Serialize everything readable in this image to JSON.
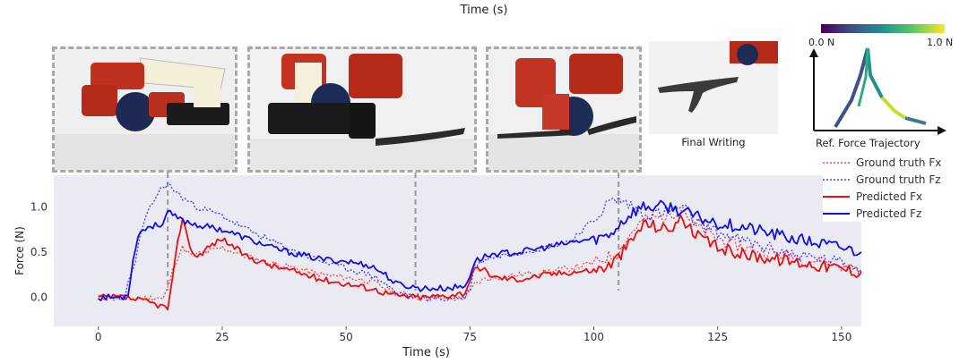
{
  "top_title": "Time (s)",
  "photos": {
    "caption_final": "Final Writing"
  },
  "inset": {
    "colorbar_min": "0.0 N",
    "colorbar_max": "1.0 N",
    "title": "Ref. Force Trajectory"
  },
  "colors": {
    "ground_truth_fx": "#ff4444",
    "ground_truth_fz": "#3b3bff",
    "predicted_fx": "#e81010",
    "predicted_fz": "#1010e6",
    "plot_bg": "#eaeaf2"
  },
  "chart_data": {
    "type": "line",
    "xlabel": "Time (s)",
    "ylabel": "Force (N)",
    "xlim": [
      -9,
      154
    ],
    "ylim": [
      -0.32,
      1.35
    ],
    "xticks": [
      0,
      25,
      50,
      75,
      100,
      125,
      150
    ],
    "yticks": [
      0.0,
      0.5,
      1.0
    ],
    "ytick_labels": [
      "0.0",
      "0.5",
      "1.0"
    ],
    "grid": false,
    "legend_position": "right",
    "markers_x": [
      14,
      64,
      105
    ],
    "series": [
      {
        "name": "Ground truth Fx",
        "style": "dotted",
        "x": [
          0,
          6,
          12,
          13,
          14,
          15,
          16,
          17,
          18,
          19,
          20,
          22,
          25,
          30,
          35,
          40,
          45,
          50,
          55,
          58,
          60,
          65,
          70,
          74,
          75,
          76,
          78,
          80,
          85,
          90,
          95,
          100,
          105,
          108,
          110,
          115,
          118,
          120,
          125,
          130,
          140,
          150,
          154
        ],
        "y": [
          0.0,
          -0.02,
          0.0,
          -0.02,
          0.1,
          0.3,
          0.45,
          0.55,
          0.5,
          0.45,
          0.48,
          0.5,
          0.55,
          0.45,
          0.38,
          0.32,
          0.25,
          0.22,
          0.18,
          0.1,
          0.05,
          0.0,
          -0.02,
          0.0,
          0.05,
          0.15,
          0.2,
          0.22,
          0.25,
          0.28,
          0.32,
          0.38,
          0.5,
          0.75,
          0.85,
          0.9,
          1.0,
          0.8,
          0.65,
          0.55,
          0.45,
          0.35,
          0.3
        ]
      },
      {
        "name": "Ground truth Fz",
        "style": "dotted",
        "x": [
          0,
          5,
          7,
          9,
          11,
          12,
          13,
          14,
          15,
          17,
          20,
          25,
          30,
          35,
          40,
          45,
          50,
          55,
          58,
          60,
          65,
          70,
          74,
          75,
          76,
          78,
          80,
          85,
          90,
          95,
          100,
          103,
          105,
          108,
          110,
          115,
          118,
          120,
          125,
          130,
          140,
          150,
          154
        ],
        "y": [
          0.0,
          0.0,
          0.3,
          0.8,
          1.05,
          1.15,
          1.22,
          1.25,
          1.2,
          1.1,
          1.0,
          0.9,
          0.75,
          0.62,
          0.5,
          0.4,
          0.32,
          0.25,
          0.15,
          0.05,
          0.0,
          -0.02,
          0.0,
          0.1,
          0.35,
          0.42,
          0.45,
          0.5,
          0.55,
          0.62,
          0.85,
          1.05,
          1.08,
          1.0,
          0.9,
          0.95,
          1.0,
          0.85,
          0.72,
          0.62,
          0.48,
          0.38,
          0.32
        ]
      },
      {
        "name": "Predicted Fx",
        "style": "solid",
        "x": [
          0,
          5,
          10,
          13,
          14,
          15,
          16,
          17,
          18,
          19,
          20,
          22,
          25,
          30,
          35,
          40,
          45,
          50,
          55,
          58,
          60,
          65,
          70,
          74,
          75,
          76,
          78,
          80,
          85,
          90,
          95,
          100,
          103,
          105,
          108,
          110,
          115,
          118,
          120,
          125,
          130,
          140,
          150,
          154
        ],
        "y": [
          0.0,
          0.0,
          -0.05,
          -0.1,
          -0.12,
          0.2,
          0.6,
          0.9,
          0.65,
          0.5,
          0.45,
          0.55,
          0.65,
          0.45,
          0.35,
          0.28,
          0.2,
          0.15,
          0.1,
          0.05,
          0.02,
          0.0,
          0.02,
          0.05,
          0.2,
          0.3,
          0.3,
          0.22,
          0.2,
          0.25,
          0.28,
          0.3,
          0.35,
          0.45,
          0.65,
          0.82,
          0.75,
          0.88,
          0.7,
          0.55,
          0.48,
          0.4,
          0.32,
          0.28
        ]
      },
      {
        "name": "Predicted Fz",
        "style": "solid",
        "x": [
          0,
          5,
          6,
          7,
          8,
          10,
          12,
          13,
          14,
          15,
          17,
          20,
          25,
          30,
          35,
          40,
          45,
          50,
          55,
          58,
          60,
          65,
          70,
          74,
          75,
          76,
          78,
          80,
          85,
          90,
          95,
          100,
          103,
          105,
          108,
          110,
          115,
          118,
          120,
          125,
          130,
          140,
          150,
          154
        ],
        "y": [
          0.0,
          0.0,
          0.05,
          0.4,
          0.7,
          0.78,
          0.8,
          0.82,
          0.95,
          0.9,
          0.85,
          0.8,
          0.75,
          0.65,
          0.55,
          0.48,
          0.42,
          0.4,
          0.35,
          0.25,
          0.15,
          0.1,
          0.1,
          0.12,
          0.25,
          0.4,
          0.45,
          0.48,
          0.5,
          0.55,
          0.6,
          0.65,
          0.68,
          0.8,
          0.95,
          1.0,
          1.0,
          0.95,
          0.9,
          0.82,
          0.78,
          0.65,
          0.55,
          0.5
        ]
      }
    ]
  }
}
